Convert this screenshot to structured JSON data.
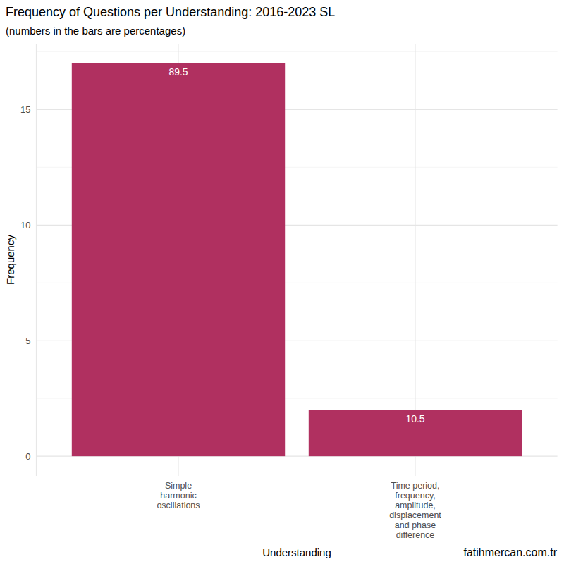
{
  "chart_data": {
    "type": "bar",
    "title": "Frequency of Questions per Understanding: 2016-2023 SL",
    "subtitle": "(numbers in the bars are percentages)",
    "x_label": "Understanding",
    "y_label": "Frequency",
    "caption": "fatihmercan.com.tr",
    "categories": [
      "Simple harmonic oscillations",
      "Time period, frequency, amplitude, displacement and phase difference"
    ],
    "values": [
      17,
      2
    ],
    "percentages": [
      89.5,
      10.5
    ],
    "color": "#b03060",
    "ylim": [
      -0.85,
      17.85
    ],
    "yticks": [
      0,
      5,
      10,
      15
    ],
    "grid": true
  }
}
